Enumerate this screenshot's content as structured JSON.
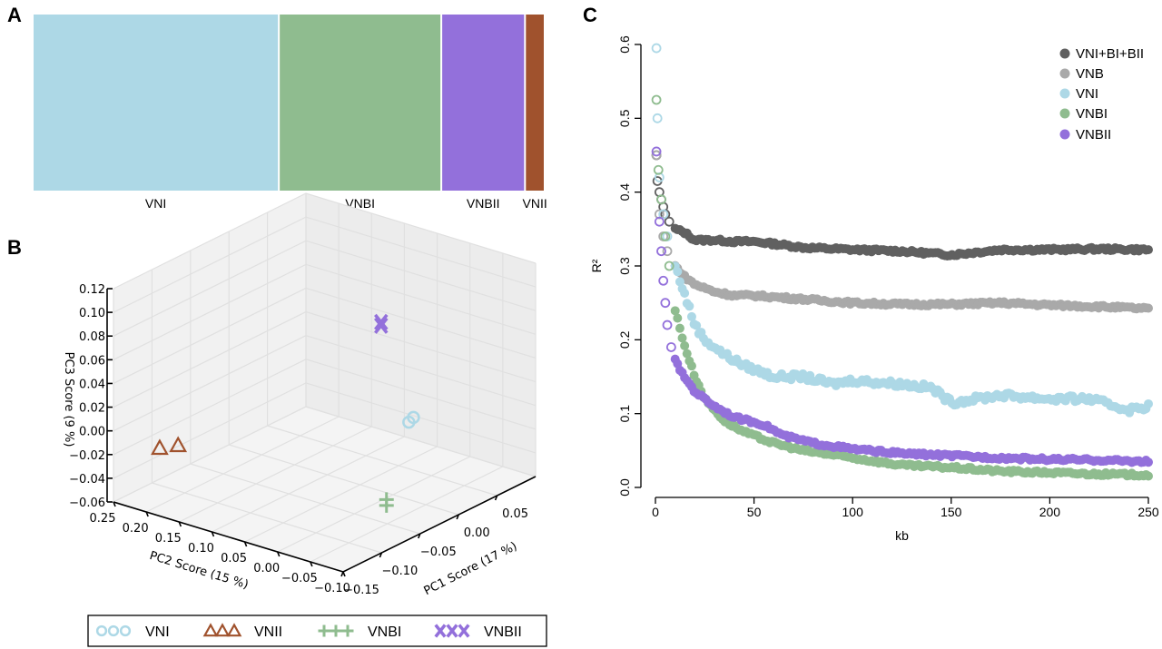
{
  "panels": {
    "a": "A",
    "b": "B",
    "c": "C"
  },
  "colors": {
    "VNI": "#add8e6",
    "VNBI": "#8fbc8f",
    "VNBII": "#9370db",
    "VNII": "#a0522d",
    "VNI+BI+BII": "#606060",
    "VNB": "#a9a9a9"
  },
  "chart_data": [
    {
      "type": "bar",
      "subtype": "stacked-ancestry",
      "panel": "A",
      "categories": [
        "VNI",
        "VNBI",
        "VNBII",
        "VNII"
      ],
      "group_share_of_width_pct": [
        50,
        33,
        17,
        4
      ],
      "ylim": [
        0,
        1
      ]
    },
    {
      "type": "scatter",
      "subtype": "3d",
      "panel": "B",
      "xlabel": "PC1 Score (17 %)",
      "ylabel": "PC2 Score (15 %)",
      "zlabel": "PC3 Score (9 %)",
      "xlim": [
        -0.15,
        0.1
      ],
      "ylim": [
        -0.1,
        0.25
      ],
      "zlim": [
        -0.06,
        0.12
      ],
      "xticks": [
        "−0.15",
        "−0.10",
        "−0.05",
        "0.00",
        "0.05"
      ],
      "yticks": [
        "0.25",
        "0.20",
        "0.15",
        "0.10",
        "0.05",
        "0.00",
        "−0.05",
        "−0.10"
      ],
      "zticks": [
        "0.12",
        "0.10",
        "0.08",
        "0.06",
        "0.04",
        "0.02",
        "0.00",
        "−0.02",
        "−0.04",
        "−0.06"
      ],
      "grid": true,
      "legend_position": "bottom",
      "series": [
        {
          "name": "VNI",
          "marker": "circle",
          "points": [
            [
              -0.011,
              -0.037,
              0.011
            ],
            [
              -0.005,
              -0.037,
              0.013
            ]
          ]
        },
        {
          "name": "VNII",
          "marker": "triangle",
          "points": [
            [
              -0.13,
              0.203,
              -0.013
            ],
            [
              -0.13,
              0.175,
              -0.006
            ]
          ]
        },
        {
          "name": "VNBI",
          "marker": "plus",
          "points": [
            [
              -0.04,
              -0.037,
              -0.05
            ],
            [
              -0.04,
              -0.037,
              -0.045
            ]
          ]
        },
        {
          "name": "VNBII",
          "marker": "x",
          "points": [
            [
              -0.047,
              -0.037,
              0.107
            ],
            [
              -0.047,
              -0.037,
              0.104
            ]
          ]
        }
      ]
    },
    {
      "type": "scatter",
      "panel": "C",
      "xlabel": "kb",
      "ylabel": "R²",
      "xlim": [
        0,
        250
      ],
      "ylim": [
        0,
        0.6
      ],
      "xticks": [
        "0",
        "50",
        "100",
        "150",
        "200",
        "250"
      ],
      "yticks": [
        "0.0",
        "0.1",
        "0.2",
        "0.3",
        "0.4",
        "0.5",
        "0.6"
      ],
      "legend_position": "top-right",
      "series": [
        {
          "name": "VNI+BI+BII",
          "x": [
            0.5,
            1,
            2,
            3,
            4,
            5,
            7,
            10,
            15,
            20,
            30,
            40,
            50,
            60,
            75,
            100,
            125,
            150,
            175,
            200,
            225,
            250
          ],
          "y": [
            0.45,
            0.415,
            0.4,
            0.39,
            0.38,
            0.37,
            0.36,
            0.35,
            0.345,
            0.335,
            0.335,
            0.333,
            0.333,
            0.33,
            0.325,
            0.322,
            0.32,
            0.315,
            0.322,
            0.322,
            0.323,
            0.322
          ]
        },
        {
          "name": "VNB",
          "x": [
            0.5,
            2,
            4,
            6,
            10,
            15,
            20,
            30,
            40,
            50,
            75,
            100,
            125,
            150,
            175,
            200,
            225,
            250
          ],
          "y": [
            0.45,
            0.37,
            0.34,
            0.32,
            0.3,
            0.285,
            0.275,
            0.265,
            0.26,
            0.26,
            0.255,
            0.25,
            0.248,
            0.248,
            0.25,
            0.247,
            0.245,
            0.242
          ]
        },
        {
          "name": "VNI",
          "x": [
            0.5,
            1,
            2,
            4,
            6,
            10,
            15,
            20,
            25,
            35,
            45,
            60,
            75,
            90,
            100,
            125,
            140,
            150,
            175,
            200,
            220,
            240,
            250
          ],
          "y": [
            0.595,
            0.5,
            0.42,
            0.37,
            0.34,
            0.3,
            0.26,
            0.22,
            0.2,
            0.18,
            0.165,
            0.15,
            0.15,
            0.14,
            0.145,
            0.14,
            0.135,
            0.115,
            0.125,
            0.12,
            0.12,
            0.105,
            0.11
          ]
        },
        {
          "name": "VNBI",
          "x": [
            0.5,
            1.5,
            3,
            5,
            7,
            10,
            15,
            20,
            25,
            35,
            45,
            60,
            75,
            100,
            125,
            150,
            175,
            200,
            225,
            250
          ],
          "y": [
            0.525,
            0.43,
            0.39,
            0.34,
            0.3,
            0.24,
            0.19,
            0.15,
            0.12,
            0.09,
            0.075,
            0.06,
            0.05,
            0.04,
            0.03,
            0.027,
            0.022,
            0.02,
            0.018,
            0.017
          ]
        },
        {
          "name": "VNBII",
          "x": [
            0.5,
            2,
            3,
            4,
            5,
            6,
            8,
            12,
            20,
            30,
            40,
            55,
            65,
            80,
            100,
            125,
            150,
            175,
            200,
            225,
            250
          ],
          "y": [
            0.455,
            0.36,
            0.32,
            0.28,
            0.25,
            0.22,
            0.19,
            0.16,
            0.13,
            0.11,
            0.095,
            0.085,
            0.07,
            0.06,
            0.052,
            0.046,
            0.043,
            0.04,
            0.038,
            0.037,
            0.035
          ]
        }
      ]
    }
  ]
}
